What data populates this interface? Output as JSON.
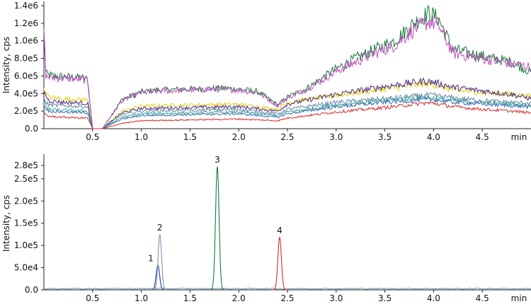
{
  "chart_data": [
    {
      "type": "line",
      "title": "",
      "xlabel": "",
      "x_unit_label": "min",
      "ylabel": "Intensity, cps",
      "xlim": [
        0,
        5
      ],
      "ylim": [
        0,
        1400000
      ],
      "x_ticks": [
        0.5,
        1.0,
        1.5,
        2.0,
        2.5,
        3.0,
        3.5,
        4.0,
        4.5
      ],
      "x_tick_labels": [
        "0.5",
        "1.0",
        "1.5",
        "2.0",
        "2.5",
        "3.0",
        "3.5",
        "4.0",
        "4.5"
      ],
      "y_ticks": [
        0,
        200000,
        400000,
        600000,
        800000,
        1000000,
        1200000,
        1400000
      ],
      "y_tick_labels": [
        "0.0",
        "2.0e5",
        "4.0e5",
        "6.0e5",
        "8.0e5",
        "1.0e6",
        "1.2e6",
        "1.4e6"
      ],
      "grid": false,
      "series": [
        {
          "color": "#1a7a3a",
          "x": [
            0.0,
            0.02,
            0.1,
            0.25,
            0.4,
            0.45,
            0.5,
            0.6,
            0.8,
            1.0,
            1.2,
            1.5,
            1.8,
            2.0,
            2.2,
            2.4,
            2.5,
            2.7,
            3.0,
            3.2,
            3.4,
            3.6,
            3.8,
            3.95,
            4.05,
            4.2,
            4.4,
            4.6,
            4.8,
            5.0
          ],
          "y": [
            1100000,
            620000,
            600000,
            590000,
            580000,
            560000,
            0,
            0,
            330000,
            420000,
            440000,
            450000,
            460000,
            450000,
            420000,
            270000,
            360000,
            460000,
            680000,
            800000,
            900000,
            1000000,
            1200000,
            1320000,
            1250000,
            900000,
            850000,
            800000,
            760000,
            640000
          ]
        },
        {
          "color": "#c04fc0",
          "x": [
            0.0,
            0.02,
            0.1,
            0.25,
            0.4,
            0.45,
            0.5,
            0.6,
            0.8,
            1.0,
            1.2,
            1.5,
            1.8,
            2.0,
            2.2,
            2.4,
            2.5,
            2.7,
            3.0,
            3.2,
            3.4,
            3.6,
            3.8,
            3.95,
            4.05,
            4.2,
            4.4,
            4.6,
            4.8,
            5.0
          ],
          "y": [
            1150000,
            590000,
            580000,
            570000,
            560000,
            540000,
            0,
            0,
            320000,
            410000,
            430000,
            440000,
            450000,
            440000,
            410000,
            260000,
            350000,
            450000,
            650000,
            760000,
            860000,
            950000,
            1130000,
            1220000,
            1180000,
            860000,
            820000,
            780000,
            740000,
            700000
          ]
        },
        {
          "color": "#e6d21e",
          "x": [
            0.0,
            0.05,
            0.2,
            0.45,
            0.5,
            0.6,
            0.8,
            1.0,
            1.5,
            2.0,
            2.4,
            2.5,
            3.0,
            3.5,
            3.9,
            4.0,
            4.2,
            4.5,
            4.8,
            5.0
          ],
          "y": [
            430000,
            360000,
            340000,
            330000,
            0,
            0,
            200000,
            260000,
            270000,
            280000,
            220000,
            300000,
            380000,
            450000,
            510000,
            500000,
            440000,
            410000,
            390000,
            370000
          ]
        },
        {
          "color": "#4b2b86",
          "x": [
            0.0,
            0.05,
            0.2,
            0.45,
            0.5,
            0.6,
            0.8,
            1.0,
            1.5,
            2.0,
            2.4,
            2.5,
            3.0,
            3.5,
            3.9,
            4.0,
            4.2,
            4.5,
            4.8,
            5.0
          ],
          "y": [
            420000,
            320000,
            300000,
            290000,
            0,
            0,
            180000,
            230000,
            240000,
            250000,
            200000,
            280000,
            390000,
            480000,
            540000,
            530000,
            470000,
            430000,
            390000,
            340000
          ]
        },
        {
          "color": "#6d8aa8",
          "x": [
            0.0,
            0.05,
            0.2,
            0.45,
            0.5,
            0.6,
            0.8,
            1.0,
            1.5,
            2.0,
            2.4,
            2.5,
            3.0,
            3.5,
            3.9,
            4.0,
            4.2,
            4.5,
            4.8,
            5.0
          ],
          "y": [
            320000,
            270000,
            260000,
            250000,
            0,
            0,
            160000,
            200000,
            210000,
            220000,
            170000,
            220000,
            300000,
            340000,
            380000,
            380000,
            350000,
            320000,
            300000,
            290000
          ]
        },
        {
          "color": "#3aa89a",
          "x": [
            0.0,
            0.05,
            0.2,
            0.45,
            0.5,
            0.6,
            0.8,
            1.0,
            1.5,
            2.0,
            2.4,
            2.5,
            3.0,
            3.5,
            3.9,
            4.0,
            4.2,
            4.5,
            4.8,
            5.0
          ],
          "y": [
            300000,
            220000,
            210000,
            200000,
            0,
            0,
            130000,
            170000,
            180000,
            190000,
            150000,
            190000,
            270000,
            320000,
            360000,
            350000,
            320000,
            300000,
            280000,
            260000
          ]
        },
        {
          "color": "#3a6ab8",
          "x": [
            0.0,
            0.05,
            0.2,
            0.45,
            0.5,
            0.6,
            0.8,
            1.0,
            1.5,
            2.0,
            2.4,
            2.5,
            3.0,
            3.5,
            3.9,
            4.0,
            4.2,
            4.5,
            4.8,
            5.0
          ],
          "y": [
            260000,
            200000,
            190000,
            180000,
            0,
            0,
            110000,
            150000,
            160000,
            170000,
            130000,
            170000,
            250000,
            300000,
            330000,
            330000,
            300000,
            280000,
            260000,
            250000
          ]
        },
        {
          "color": "#d42a2a",
          "x": [
            0.0,
            0.05,
            0.2,
            0.45,
            0.5,
            0.6,
            0.8,
            1.0,
            1.5,
            2.0,
            2.4,
            2.5,
            3.0,
            3.5,
            3.9,
            4.0,
            4.2,
            4.5,
            4.8,
            5.0
          ],
          "y": [
            180000,
            140000,
            130000,
            120000,
            0,
            0,
            60000,
            90000,
            100000,
            110000,
            90000,
            120000,
            190000,
            240000,
            290000,
            290000,
            250000,
            220000,
            200000,
            180000
          ]
        }
      ]
    },
    {
      "type": "line",
      "title": "",
      "xlabel": "",
      "x_unit_label": "min",
      "ylabel": "Intensity, cps",
      "xlim": [
        0,
        5
      ],
      "ylim": [
        0,
        280000
      ],
      "x_ticks": [
        0.5,
        1.0,
        1.5,
        2.0,
        2.5,
        3.0,
        3.5,
        4.0,
        4.5
      ],
      "x_tick_labels": [
        "0.5",
        "1.0",
        "1.5",
        "2.0",
        "2.5",
        "3.0",
        "3.5",
        "4.0",
        "4.5"
      ],
      "y_ticks": [
        0,
        50000,
        100000,
        150000,
        200000,
        250000,
        280000
      ],
      "y_tick_labels": [
        "0.0",
        "5.0e4",
        "1.0e5",
        "1.5e5",
        "2.0e5",
        "2.5e5",
        "2.8e5"
      ],
      "grid": false,
      "peaks": [
        {
          "label": "1",
          "rt": 1.17,
          "height": 55000,
          "color": "#2a3a9a"
        },
        {
          "label": "2",
          "rt": 1.19,
          "height": 124000,
          "color": "#8090b0"
        },
        {
          "label": "3",
          "rt": 1.78,
          "height": 277000,
          "color": "#1a7a3a"
        },
        {
          "label": "4",
          "rt": 2.42,
          "height": 118000,
          "color": "#d42a2a"
        }
      ],
      "baseline_color": "#6d8aa8"
    }
  ]
}
